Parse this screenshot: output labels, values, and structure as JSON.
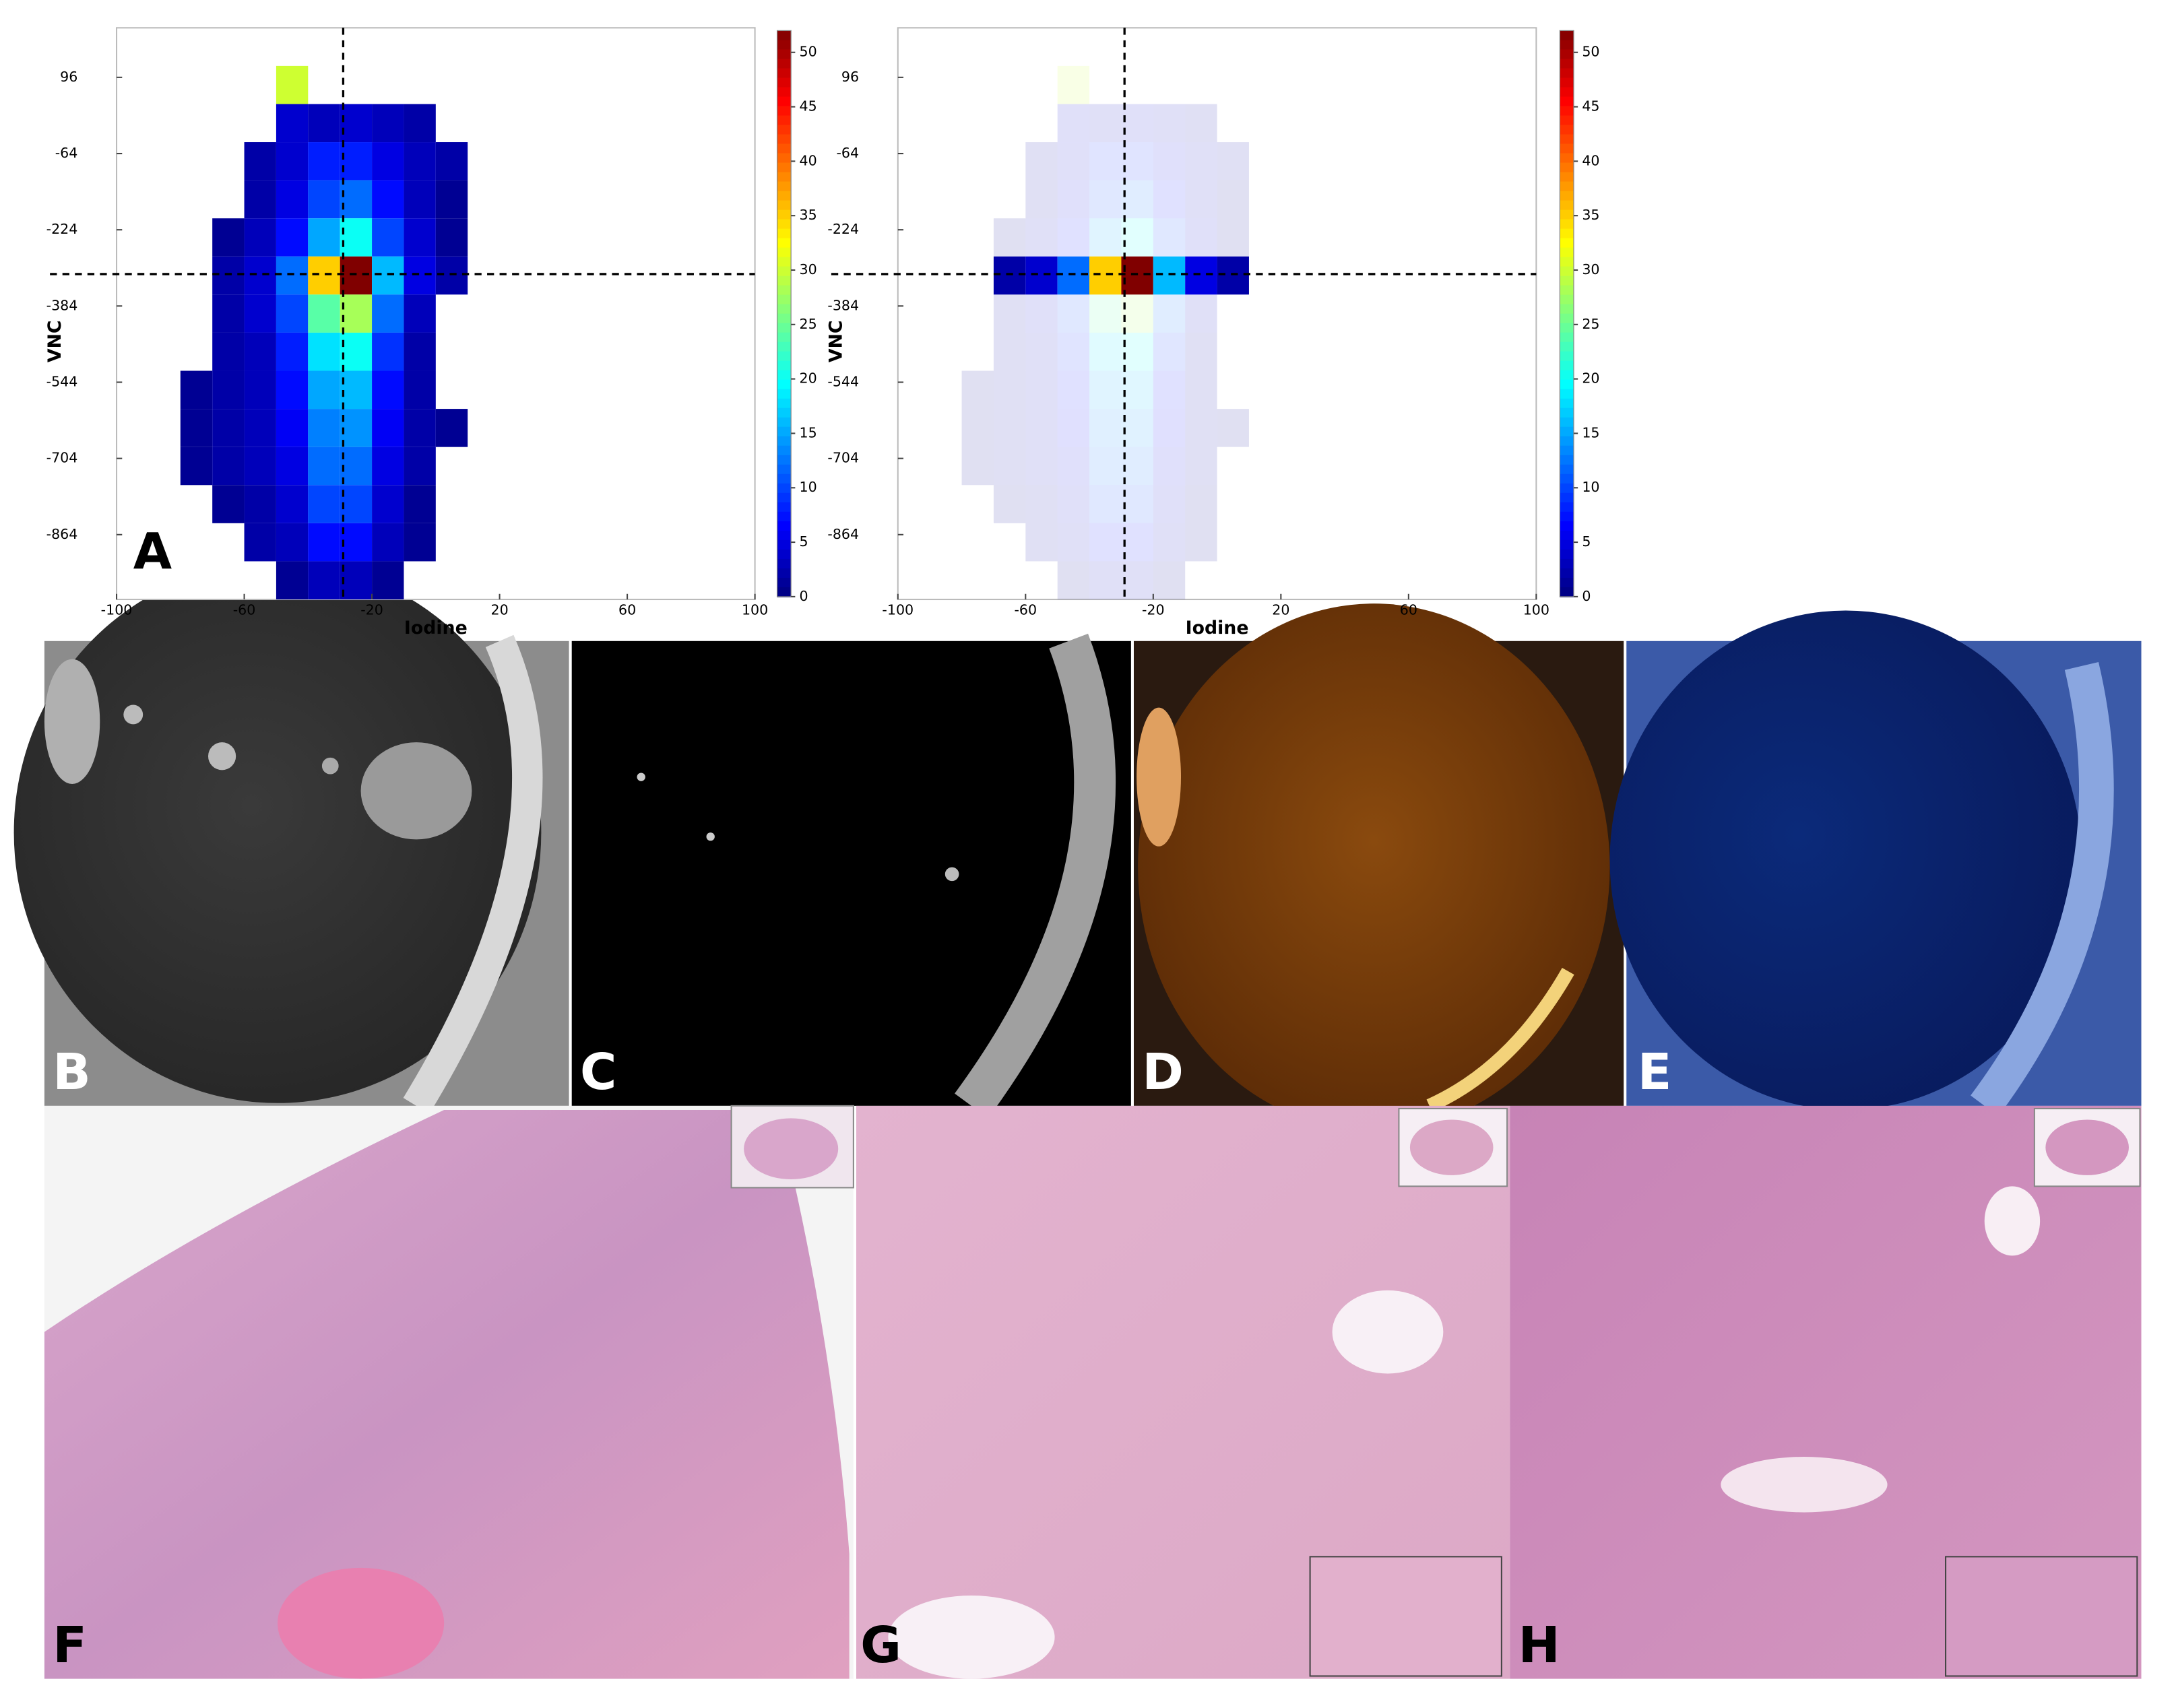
{
  "chart_data": [
    {
      "type": "heatmap",
      "x_label": "Iodine",
      "y_label": "VNC",
      "panel_label": "A",
      "xlim": [
        -100,
        100
      ],
      "ylim": [
        -1000,
        200
      ],
      "xticks": [
        -100,
        -60,
        -20,
        20,
        60,
        100
      ],
      "yticks": [
        96,
        -64,
        -224,
        -384,
        -544,
        -704,
        -864
      ],
      "clim": [
        0,
        52
      ],
      "cticks": [
        0,
        5,
        10,
        15,
        20,
        25,
        30,
        35,
        40,
        45,
        50
      ],
      "colormap": "jet",
      "crosshair": {
        "x": -29,
        "y": -317
      },
      "x_bins": [
        -80,
        -70,
        -60,
        -50,
        -40,
        -30,
        -20,
        -10,
        0,
        10,
        20
      ],
      "y_bins": [
        200,
        120,
        40,
        -40,
        -120,
        -200,
        -280,
        -360,
        -440,
        -520,
        -600,
        -680,
        -760,
        -840,
        -920,
        -1000
      ],
      "values": [
        [
          null,
          null,
          null,
          null,
          null,
          null,
          null,
          null,
          null,
          null
        ],
        [
          null,
          null,
          null,
          30,
          null,
          null,
          null,
          null,
          null,
          null
        ],
        [
          null,
          null,
          null,
          4,
          3,
          4,
          3,
          2,
          null,
          null
        ],
        [
          null,
          null,
          2,
          4,
          8,
          8,
          5,
          3,
          2,
          null
        ],
        [
          null,
          null,
          2,
          5,
          10,
          12,
          7,
          3,
          1,
          null
        ],
        [
          null,
          1,
          3,
          7,
          15,
          20,
          10,
          4,
          1,
          null
        ],
        [
          null,
          2,
          4,
          12,
          35,
          52,
          16,
          5,
          2,
          null
        ],
        [
          null,
          2,
          4,
          10,
          24,
          28,
          12,
          3,
          null,
          null
        ],
        [
          null,
          2,
          3,
          8,
          18,
          20,
          9,
          2,
          null,
          null
        ],
        [
          1,
          2,
          3,
          7,
          15,
          16,
          7,
          2,
          null,
          null
        ],
        [
          1,
          2,
          3,
          6,
          13,
          14,
          6,
          2,
          1,
          null
        ],
        [
          1,
          2,
          3,
          5,
          12,
          12,
          5,
          2,
          null,
          null
        ],
        [
          null,
          1,
          2,
          4,
          10,
          10,
          4,
          1,
          null,
          null
        ],
        [
          null,
          null,
          2,
          3,
          7,
          7,
          3,
          1,
          null,
          null
        ],
        [
          null,
          null,
          null,
          1,
          3,
          3,
          1,
          null,
          null,
          null
        ]
      ]
    },
    {
      "type": "heatmap",
      "x_label": "Iodine",
      "y_label": "VNC",
      "xlim": [
        -100,
        100
      ],
      "ylim": [
        -1000,
        200
      ],
      "xticks": [
        -100,
        -60,
        -20,
        20,
        60,
        100
      ],
      "yticks": [
        96,
        -64,
        -224,
        -384,
        -544,
        -704,
        -864
      ],
      "clim": [
        0,
        52
      ],
      "cticks": [
        0,
        5,
        10,
        15,
        20,
        25,
        30,
        35,
        40,
        45,
        50
      ],
      "colormap": "jet",
      "crosshair": {
        "x": -29,
        "y": -317
      },
      "highlight_ylim": [
        -381,
        -247
      ],
      "x_bins": [
        -80,
        -70,
        -60,
        -50,
        -40,
        -30,
        -20,
        -10,
        0,
        10,
        20
      ],
      "y_bins": [
        200,
        120,
        40,
        -40,
        -120,
        -200,
        -280,
        -360,
        -440,
        -520,
        -600,
        -680,
        -760,
        -840,
        -920,
        -1000
      ],
      "values": [
        [
          null,
          null,
          null,
          null,
          null,
          null,
          null,
          null,
          null,
          null
        ],
        [
          null,
          null,
          null,
          30,
          null,
          null,
          null,
          null,
          null,
          null
        ],
        [
          null,
          null,
          null,
          4,
          3,
          4,
          3,
          2,
          null,
          null
        ],
        [
          null,
          null,
          2,
          4,
          8,
          8,
          5,
          3,
          2,
          null
        ],
        [
          null,
          null,
          2,
          5,
          10,
          12,
          7,
          3,
          1,
          null
        ],
        [
          null,
          1,
          3,
          7,
          15,
          20,
          10,
          4,
          1,
          null
        ],
        [
          null,
          2,
          4,
          12,
          35,
          52,
          16,
          5,
          2,
          null
        ],
        [
          null,
          2,
          4,
          10,
          24,
          28,
          12,
          3,
          null,
          null
        ],
        [
          null,
          2,
          3,
          8,
          18,
          20,
          9,
          2,
          null,
          null
        ],
        [
          1,
          2,
          3,
          7,
          15,
          16,
          7,
          2,
          null,
          null
        ],
        [
          1,
          2,
          3,
          6,
          13,
          14,
          6,
          2,
          1,
          null
        ],
        [
          1,
          2,
          3,
          5,
          12,
          12,
          5,
          2,
          null,
          null
        ],
        [
          null,
          1,
          2,
          4,
          10,
          10,
          4,
          1,
          null,
          null
        ],
        [
          null,
          null,
          2,
          3,
          7,
          7,
          3,
          1,
          null,
          null
        ],
        [
          null,
          null,
          null,
          1,
          3,
          3,
          1,
          null,
          null,
          null
        ]
      ]
    }
  ],
  "panels": [
    {
      "label": "B"
    },
    {
      "label": "C"
    },
    {
      "label": "D"
    },
    {
      "label": "E"
    },
    {
      "label": "F"
    },
    {
      "label": "G"
    },
    {
      "label": "H"
    }
  ]
}
